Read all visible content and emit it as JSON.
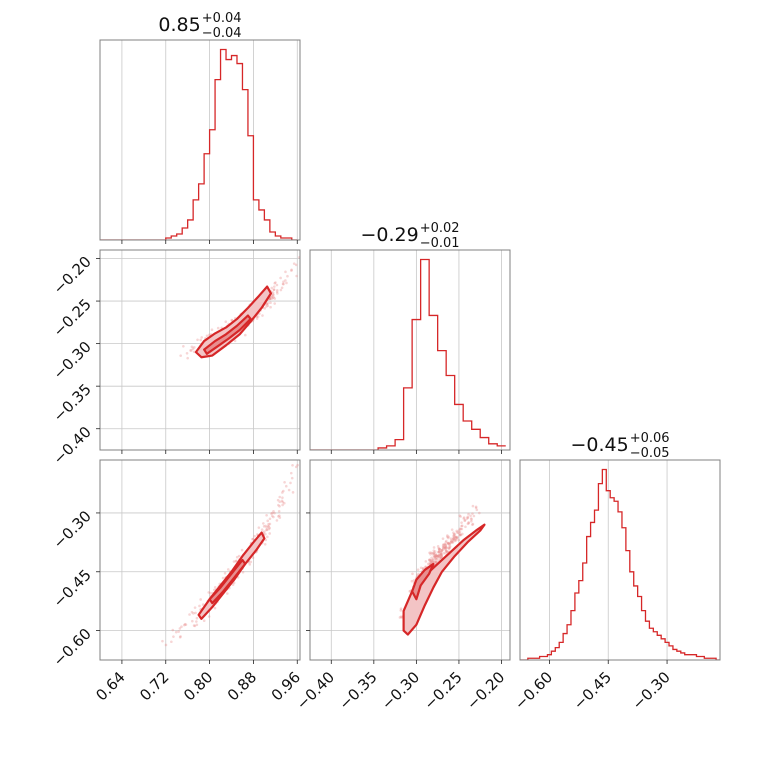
{
  "colors": {
    "series": "#d62728",
    "fill_outer": "#f3c4c5",
    "fill_inner": "#e88f90",
    "samples": "#e8898a"
  },
  "chart_data": {
    "type": "corner",
    "grid": true,
    "parameters": [
      {
        "range": [
          0.6,
          0.965
        ],
        "ticks": [
          0.64,
          0.72,
          0.8,
          0.88,
          0.96
        ],
        "tick_labels": [
          "0.64",
          "0.72",
          "0.80",
          "0.88",
          "0.96"
        ],
        "median": 0.85,
        "plus": 0.04,
        "minus": 0.04,
        "title": {
          "value": "0.85",
          "plus": "+0.04",
          "minus": "−0.04"
        }
      },
      {
        "range": [
          -0.425,
          -0.19
        ],
        "ticks": [
          -0.4,
          -0.35,
          -0.3,
          -0.25,
          -0.2
        ],
        "tick_labels": [
          "−0.40",
          "−0.35",
          "−0.30",
          "−0.25",
          "−0.20"
        ],
        "ytick_labels": [
          "−0.20",
          "−0.25",
          "−0.30",
          "−0.35",
          "−0.40"
        ],
        "median": -0.29,
        "plus": 0.02,
        "minus": 0.01,
        "title": {
          "value": "−0.29",
          "plus": "+0.02",
          "minus": "−0.01"
        }
      },
      {
        "range": [
          -0.675,
          -0.165
        ],
        "ticks": [
          -0.6,
          -0.45,
          -0.3
        ],
        "tick_labels": [
          "−0.60",
          "−0.45",
          "−0.30"
        ],
        "median": -0.45,
        "plus": 0.06,
        "minus": 0.05,
        "title": {
          "value": "−0.45",
          "plus": "+0.06",
          "minus": "−0.05"
        }
      }
    ],
    "histograms": [
      {
        "bins": [
          0.605,
          0.615,
          0.625,
          0.635,
          0.645,
          0.655,
          0.665,
          0.675,
          0.685,
          0.695,
          0.705,
          0.715,
          0.725,
          0.735,
          0.745,
          0.755,
          0.765,
          0.775,
          0.785,
          0.795,
          0.805,
          0.815,
          0.825,
          0.835,
          0.845,
          0.855,
          0.865,
          0.875,
          0.885,
          0.895,
          0.905,
          0.915,
          0.925,
          0.935,
          0.945,
          0.955
        ],
        "counts": [
          0,
          0,
          0,
          0,
          0,
          0,
          0,
          0,
          0,
          0,
          0,
          0,
          1,
          2,
          3,
          6,
          10,
          20,
          28,
          43,
          55,
          80,
          95,
          90,
          92,
          88,
          75,
          52,
          20,
          15,
          10,
          4,
          2,
          1,
          1,
          0
        ]
      },
      {
        "bins": [
          -0.42,
          -0.41,
          -0.4,
          -0.39,
          -0.38,
          -0.37,
          -0.36,
          -0.35,
          -0.34,
          -0.33,
          -0.32,
          -0.31,
          -0.3,
          -0.29,
          -0.28,
          -0.27,
          -0.26,
          -0.25,
          -0.24,
          -0.23,
          -0.22,
          -0.21,
          -0.2
        ],
        "counts": [
          0,
          0,
          0,
          0,
          0,
          0,
          0,
          0,
          1,
          2,
          5,
          30,
          63,
          92,
          65,
          48,
          36,
          22,
          14,
          10,
          6,
          3,
          2
        ]
      },
      {
        "bins": [
          -0.67,
          -0.66,
          -0.65,
          -0.64,
          -0.63,
          -0.62,
          -0.61,
          -0.6,
          -0.59,
          -0.58,
          -0.57,
          -0.56,
          -0.55,
          -0.54,
          -0.53,
          -0.52,
          -0.51,
          -0.5,
          -0.49,
          -0.48,
          -0.47,
          -0.46,
          -0.45,
          -0.44,
          -0.43,
          -0.42,
          -0.41,
          -0.4,
          -0.39,
          -0.38,
          -0.37,
          -0.36,
          -0.35,
          -0.34,
          -0.33,
          -0.32,
          -0.31,
          -0.3,
          -0.29,
          -0.28,
          -0.27,
          -0.26,
          -0.25,
          -0.24,
          -0.23,
          -0.22,
          -0.21,
          -0.2,
          -0.19,
          -0.18,
          -0.17
        ],
        "counts": [
          0,
          0,
          1,
          1,
          1,
          2,
          2,
          3,
          5,
          7,
          10,
          15,
          20,
          28,
          38,
          45,
          55,
          70,
          78,
          85,
          100,
          108,
          96,
          92,
          90,
          84,
          75,
          62,
          50,
          42,
          36,
          28,
          22,
          18,
          16,
          14,
          12,
          10,
          8,
          6,
          5,
          4,
          3,
          3,
          3,
          2,
          2,
          1,
          1,
          1,
          0
        ]
      }
    ],
    "pairs": [
      {
        "x_param": 0,
        "y_param": 1,
        "ridge": [
          [
            0.76,
            -0.31
          ],
          [
            0.78,
            -0.305
          ],
          [
            0.8,
            -0.298
          ],
          [
            0.82,
            -0.29
          ],
          [
            0.84,
            -0.283
          ],
          [
            0.86,
            -0.275
          ],
          [
            0.88,
            -0.265
          ],
          [
            0.9,
            -0.252
          ],
          [
            0.92,
            -0.238
          ],
          [
            0.94,
            -0.224
          ],
          [
            0.96,
            -0.205
          ]
        ],
        "inner_contour": [
          [
            0.79,
            -0.307
          ],
          [
            0.81,
            -0.297
          ],
          [
            0.83,
            -0.289
          ],
          [
            0.85,
            -0.279
          ],
          [
            0.87,
            -0.267
          ],
          [
            0.875,
            -0.271
          ],
          [
            0.855,
            -0.284
          ],
          [
            0.835,
            -0.294
          ],
          [
            0.815,
            -0.303
          ],
          [
            0.795,
            -0.312
          ]
        ],
        "outer_contour": [
          [
            0.775,
            -0.31
          ],
          [
            0.79,
            -0.297
          ],
          [
            0.81,
            -0.288
          ],
          [
            0.83,
            -0.281
          ],
          [
            0.85,
            -0.271
          ],
          [
            0.87,
            -0.258
          ],
          [
            0.89,
            -0.244
          ],
          [
            0.905,
            -0.233
          ],
          [
            0.912,
            -0.241
          ],
          [
            0.895,
            -0.258
          ],
          [
            0.875,
            -0.274
          ],
          [
            0.855,
            -0.289
          ],
          [
            0.83,
            -0.302
          ],
          [
            0.805,
            -0.314
          ],
          [
            0.785,
            -0.316
          ]
        ]
      },
      {
        "x_param": 0,
        "y_param": 2,
        "ridge": [
          [
            0.72,
            -0.63
          ],
          [
            0.75,
            -0.6
          ],
          [
            0.78,
            -0.56
          ],
          [
            0.8,
            -0.53
          ],
          [
            0.82,
            -0.5
          ],
          [
            0.84,
            -0.46
          ],
          [
            0.86,
            -0.43
          ],
          [
            0.88,
            -0.39
          ],
          [
            0.9,
            -0.35
          ],
          [
            0.92,
            -0.3
          ],
          [
            0.94,
            -0.25
          ],
          [
            0.96,
            -0.19
          ]
        ],
        "inner_contour": [
          [
            0.8,
            -0.52
          ],
          [
            0.82,
            -0.49
          ],
          [
            0.84,
            -0.455
          ],
          [
            0.86,
            -0.42
          ],
          [
            0.865,
            -0.43
          ],
          [
            0.845,
            -0.465
          ],
          [
            0.825,
            -0.5
          ],
          [
            0.805,
            -0.53
          ]
        ],
        "outer_contour": [
          [
            0.78,
            -0.56
          ],
          [
            0.8,
            -0.52
          ],
          [
            0.82,
            -0.485
          ],
          [
            0.84,
            -0.45
          ],
          [
            0.86,
            -0.41
          ],
          [
            0.88,
            -0.375
          ],
          [
            0.895,
            -0.35
          ],
          [
            0.9,
            -0.365
          ],
          [
            0.885,
            -0.395
          ],
          [
            0.865,
            -0.43
          ],
          [
            0.845,
            -0.47
          ],
          [
            0.825,
            -0.505
          ],
          [
            0.805,
            -0.54
          ],
          [
            0.785,
            -0.57
          ]
        ]
      },
      {
        "x_param": 1,
        "y_param": 2,
        "ridge": [
          [
            -0.315,
            -0.56
          ],
          [
            -0.305,
            -0.51
          ],
          [
            -0.3,
            -0.48
          ],
          [
            -0.29,
            -0.45
          ],
          [
            -0.28,
            -0.42
          ],
          [
            -0.27,
            -0.4
          ],
          [
            -0.26,
            -0.37
          ],
          [
            -0.25,
            -0.35
          ],
          [
            -0.24,
            -0.32
          ],
          [
            -0.23,
            -0.3
          ]
        ],
        "inner_contour": [
          [
            -0.305,
            -0.5
          ],
          [
            -0.3,
            -0.47
          ],
          [
            -0.29,
            -0.445
          ],
          [
            -0.28,
            -0.43
          ],
          [
            -0.285,
            -0.455
          ],
          [
            -0.295,
            -0.485
          ],
          [
            -0.3,
            -0.52
          ]
        ],
        "outer_contour": [
          [
            -0.315,
            -0.6
          ],
          [
            -0.315,
            -0.55
          ],
          [
            -0.305,
            -0.5
          ],
          [
            -0.29,
            -0.46
          ],
          [
            -0.275,
            -0.43
          ],
          [
            -0.26,
            -0.4
          ],
          [
            -0.245,
            -0.37
          ],
          [
            -0.23,
            -0.345
          ],
          [
            -0.22,
            -0.33
          ],
          [
            -0.225,
            -0.345
          ],
          [
            -0.24,
            -0.375
          ],
          [
            -0.255,
            -0.41
          ],
          [
            -0.27,
            -0.45
          ],
          [
            -0.28,
            -0.49
          ],
          [
            -0.29,
            -0.535
          ],
          [
            -0.3,
            -0.585
          ],
          [
            -0.31,
            -0.61
          ]
        ]
      }
    ]
  }
}
